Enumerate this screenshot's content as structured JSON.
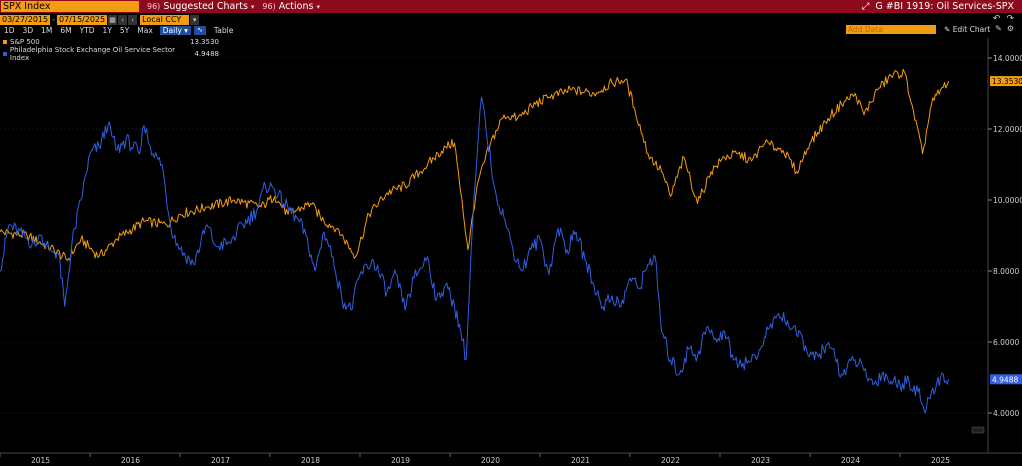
{
  "toolbar": {
    "ticker": "SPX Index",
    "suggested_prefix": "96)",
    "suggested": "Suggested Charts",
    "actions_prefix": "96)",
    "actions": "Actions",
    "right_info": "G #BI 1919: Oil Services-SPX"
  },
  "range": {
    "start": "03/27/2015",
    "end": "07/15/2025",
    "currency": "Local CCY"
  },
  "periods": [
    "1D",
    "3D",
    "1M",
    "6M",
    "YTD",
    "1Y",
    "5Y",
    "Max"
  ],
  "frequency": "Daily",
  "table_label": "Table",
  "add_data_placeholder": "Add Data",
  "edit_chart": "Edit Chart",
  "legend": [
    {
      "name": "S&P 500",
      "value": "13.3530",
      "color": "#f39c12"
    },
    {
      "name": "Philadelphia Stock Exchange Oil Service Sector Index",
      "value": "4.9488",
      "color": "#2f5fe0"
    }
  ],
  "chart_data": {
    "type": "line",
    "ylim": [
      3.2,
      14.8
    ],
    "yticks": [
      "14.0000",
      "12.0000",
      "10.0000",
      "8.0000",
      "6.0000",
      "4.0000"
    ],
    "xlim": [
      2014.85,
      2025.6
    ],
    "xticks": [
      "2015",
      "2016",
      "2017",
      "2018",
      "2019",
      "2020",
      "2021",
      "2022",
      "2023",
      "2024",
      "2025"
    ],
    "last_labels": {
      "spx": "13.3530",
      "osx": "4.9488"
    },
    "series": [
      {
        "name": "S&P 500",
        "color": "#f39c12",
        "points": [
          [
            2015.0,
            9.1
          ],
          [
            2015.3,
            9.0
          ],
          [
            2015.6,
            8.6
          ],
          [
            2015.75,
            8.3
          ],
          [
            2015.9,
            8.9
          ],
          [
            2016.1,
            8.4
          ],
          [
            2016.3,
            8.9
          ],
          [
            2016.6,
            9.4
          ],
          [
            2016.85,
            9.3
          ],
          [
            2017.0,
            9.6
          ],
          [
            2017.3,
            9.8
          ],
          [
            2017.6,
            10.0
          ],
          [
            2017.9,
            9.8
          ],
          [
            2018.05,
            10.1
          ],
          [
            2018.2,
            9.6
          ],
          [
            2018.45,
            9.9
          ],
          [
            2018.6,
            9.4
          ],
          [
            2018.75,
            9.2
          ],
          [
            2018.95,
            8.4
          ],
          [
            2019.1,
            9.6
          ],
          [
            2019.3,
            10.2
          ],
          [
            2019.5,
            10.4
          ],
          [
            2019.75,
            11.0
          ],
          [
            2019.95,
            11.5
          ],
          [
            2020.05,
            11.6
          ],
          [
            2020.12,
            10.2
          ],
          [
            2020.2,
            8.6
          ],
          [
            2020.3,
            10.4
          ],
          [
            2020.45,
            11.6
          ],
          [
            2020.6,
            12.4
          ],
          [
            2020.75,
            12.3
          ],
          [
            2020.95,
            12.7
          ],
          [
            2021.1,
            12.9
          ],
          [
            2021.35,
            13.1
          ],
          [
            2021.6,
            13.0
          ],
          [
            2021.8,
            13.3
          ],
          [
            2021.95,
            13.4
          ],
          [
            2022.05,
            12.6
          ],
          [
            2022.2,
            11.3
          ],
          [
            2022.35,
            10.8
          ],
          [
            2022.45,
            10.1
          ],
          [
            2022.6,
            11.2
          ],
          [
            2022.75,
            9.9
          ],
          [
            2022.9,
            10.8
          ],
          [
            2023.05,
            11.2
          ],
          [
            2023.2,
            11.3
          ],
          [
            2023.35,
            11.1
          ],
          [
            2023.5,
            11.6
          ],
          [
            2023.7,
            11.4
          ],
          [
            2023.85,
            10.8
          ],
          [
            2024.0,
            11.6
          ],
          [
            2024.2,
            12.3
          ],
          [
            2024.35,
            12.7
          ],
          [
            2024.5,
            13.0
          ],
          [
            2024.6,
            12.4
          ],
          [
            2024.75,
            13.1
          ],
          [
            2024.9,
            13.5
          ],
          [
            2025.05,
            13.6
          ],
          [
            2025.15,
            12.5
          ],
          [
            2025.25,
            11.3
          ],
          [
            2025.35,
            12.7
          ],
          [
            2025.45,
            13.1
          ],
          [
            2025.54,
            13.35
          ]
        ]
      },
      {
        "name": "Philadelphia Stock Exchange Oil Service Sector Index",
        "color": "#2f5fe0",
        "points": [
          [
            2015.0,
            8.0
          ],
          [
            2015.1,
            9.3
          ],
          [
            2015.25,
            9.0
          ],
          [
            2015.4,
            8.7
          ],
          [
            2015.45,
            9.0
          ],
          [
            2015.55,
            8.6
          ],
          [
            2015.65,
            8.5
          ],
          [
            2015.72,
            7.0
          ],
          [
            2015.8,
            8.8
          ],
          [
            2015.9,
            10.0
          ],
          [
            2016.0,
            11.3
          ],
          [
            2016.1,
            11.5
          ],
          [
            2016.2,
            12.1
          ],
          [
            2016.3,
            11.4
          ],
          [
            2016.4,
            11.7
          ],
          [
            2016.55,
            11.3
          ],
          [
            2016.6,
            12.1
          ],
          [
            2016.7,
            11.3
          ],
          [
            2016.8,
            11.0
          ],
          [
            2016.9,
            9.2
          ],
          [
            2017.0,
            8.6
          ],
          [
            2017.15,
            8.2
          ],
          [
            2017.3,
            9.3
          ],
          [
            2017.4,
            8.7
          ],
          [
            2017.55,
            8.8
          ],
          [
            2017.7,
            9.3
          ],
          [
            2017.85,
            9.7
          ],
          [
            2017.95,
            10.4
          ],
          [
            2018.05,
            10.3
          ],
          [
            2018.15,
            9.9
          ],
          [
            2018.3,
            9.5
          ],
          [
            2018.4,
            9.0
          ],
          [
            2018.5,
            8.0
          ],
          [
            2018.6,
            9.1
          ],
          [
            2018.7,
            8.4
          ],
          [
            2018.8,
            7.2
          ],
          [
            2018.9,
            6.9
          ],
          [
            2019.0,
            7.9
          ],
          [
            2019.15,
            8.3
          ],
          [
            2019.3,
            7.4
          ],
          [
            2019.4,
            7.9
          ],
          [
            2019.5,
            6.9
          ],
          [
            2019.6,
            7.8
          ],
          [
            2019.75,
            8.4
          ],
          [
            2019.85,
            7.2
          ],
          [
            2019.95,
            7.6
          ],
          [
            2020.05,
            7.0
          ],
          [
            2020.12,
            6.3
          ],
          [
            2020.18,
            5.5
          ],
          [
            2020.25,
            9.3
          ],
          [
            2020.3,
            11.2
          ],
          [
            2020.35,
            12.9
          ],
          [
            2020.4,
            12.0
          ],
          [
            2020.5,
            10.3
          ],
          [
            2020.6,
            9.5
          ],
          [
            2020.7,
            8.6
          ],
          [
            2020.8,
            8.0
          ],
          [
            2020.9,
            8.6
          ],
          [
            2021.0,
            8.9
          ],
          [
            2021.1,
            7.9
          ],
          [
            2021.2,
            9.2
          ],
          [
            2021.3,
            8.6
          ],
          [
            2021.4,
            9.1
          ],
          [
            2021.5,
            8.3
          ],
          [
            2021.6,
            7.6
          ],
          [
            2021.7,
            7.0
          ],
          [
            2021.8,
            7.3
          ],
          [
            2021.9,
            7.0
          ],
          [
            2022.0,
            7.8
          ],
          [
            2022.1,
            7.5
          ],
          [
            2022.2,
            8.2
          ],
          [
            2022.28,
            8.4
          ],
          [
            2022.35,
            6.3
          ],
          [
            2022.45,
            5.5
          ],
          [
            2022.55,
            5.1
          ],
          [
            2022.65,
            5.8
          ],
          [
            2022.75,
            5.6
          ],
          [
            2022.85,
            6.4
          ],
          [
            2022.95,
            6.1
          ],
          [
            2023.05,
            6.3
          ],
          [
            2023.15,
            5.5
          ],
          [
            2023.3,
            5.4
          ],
          [
            2023.45,
            5.8
          ],
          [
            2023.55,
            6.4
          ],
          [
            2023.65,
            6.8
          ],
          [
            2023.75,
            6.6
          ],
          [
            2023.85,
            6.2
          ],
          [
            2023.95,
            5.9
          ],
          [
            2024.05,
            5.5
          ],
          [
            2024.15,
            5.8
          ],
          [
            2024.25,
            5.8
          ],
          [
            2024.35,
            5.1
          ],
          [
            2024.5,
            5.5
          ],
          [
            2024.6,
            5.2
          ],
          [
            2024.7,
            4.8
          ],
          [
            2024.8,
            5.1
          ],
          [
            2024.9,
            4.9
          ],
          [
            2025.0,
            4.8
          ],
          [
            2025.1,
            4.9
          ],
          [
            2025.2,
            4.6
          ],
          [
            2025.28,
            4.0
          ],
          [
            2025.35,
            4.6
          ],
          [
            2025.45,
            5.0
          ],
          [
            2025.54,
            4.95
          ]
        ]
      }
    ]
  }
}
